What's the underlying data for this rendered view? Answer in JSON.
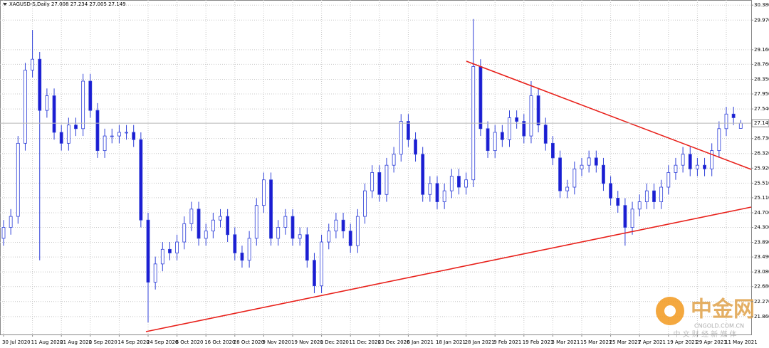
{
  "chart_data": {
    "type": "candlestick",
    "title": "XAGUSD-S,Daily  27.008 27.234 27.005 27.149",
    "categories": [
      "30 Jul 2020",
      null,
      null,
      null,
      "11 Aug 2020",
      null,
      null,
      null,
      "21 Aug 2020",
      null,
      null,
      null,
      "2 Sep 2020",
      null,
      null,
      null,
      "14 Sep 2020",
      null,
      null,
      null,
      "24 Sep 2020",
      null,
      null,
      null,
      "6 Oct 2020",
      null,
      null,
      null,
      "16 Oct 2020",
      null,
      null,
      null,
      "28 Oct 2020",
      null,
      null,
      null,
      "9 Nov 2020",
      null,
      null,
      null,
      "19 Nov 2020",
      null,
      null,
      null,
      "1 Dec 2020",
      null,
      null,
      null,
      "11 Dec 2020",
      null,
      null,
      null,
      "23 Dec 2020",
      null,
      null,
      null,
      "6 Jan 2021",
      null,
      null,
      null,
      "18 Jan 2021",
      null,
      null,
      null,
      "28 Jan 2021",
      null,
      null,
      null,
      "9 Feb 2021",
      null,
      null,
      null,
      "19 Feb 2021",
      null,
      null,
      null,
      "3 Mar 2021",
      null,
      null,
      null,
      "15 Mar 2021",
      null,
      null,
      null,
      "25 Mar 2021",
      null,
      null,
      null,
      "7 Apr 2021",
      null,
      null,
      null,
      "19 Apr 2021",
      null,
      null,
      null,
      "29 Apr 2021",
      null,
      null,
      null,
      "11 May 2021",
      null,
      null
    ],
    "open": [
      24.0,
      24.3,
      24.6,
      26.6,
      28.6,
      28.9,
      27.5,
      27.9,
      26.9,
      26.6,
      27.1,
      27.0,
      28.3,
      27.5,
      26.4,
      26.8,
      26.8,
      26.9,
      26.9,
      26.7,
      24.5,
      22.8,
      23.3,
      23.7,
      23.6,
      23.9,
      24.4,
      24.8,
      24.0,
      24.2,
      24.5,
      24.6,
      24.1,
      23.6,
      23.4,
      24.0,
      24.9,
      25.6,
      24.0,
      24.3,
      24.6,
      24.0,
      24.1,
      23.4,
      22.7,
      23.9,
      24.2,
      24.5,
      24.2,
      23.8,
      24.6,
      25.3,
      25.8,
      25.2,
      26.0,
      26.3,
      27.2,
      26.7,
      26.3,
      25.2,
      25.5,
      25.0,
      25.3,
      25.7,
      25.4,
      25.6,
      28.7,
      27.0,
      26.4,
      26.9,
      26.7,
      27.3,
      27.2,
      26.8,
      27.9,
      27.1,
      26.6,
      26.2,
      25.3,
      25.4,
      25.9,
      26.0,
      26.2,
      26.0,
      25.5,
      25.1,
      24.9,
      24.3,
      24.8,
      25.0,
      25.3,
      25.0,
      25.4,
      25.8,
      26.0,
      26.3,
      25.9,
      26.0,
      25.9,
      26.4,
      27.0,
      27.4,
      27.008
    ],
    "high": [
      24.5,
      24.8,
      26.8,
      28.8,
      29.7,
      29.1,
      28.1,
      28.1,
      27.1,
      27.3,
      27.3,
      28.5,
      28.5,
      27.7,
      27.0,
      27.0,
      27.1,
      27.1,
      27.1,
      26.9,
      24.7,
      23.5,
      23.9,
      23.9,
      24.1,
      24.6,
      25.0,
      25.0,
      24.4,
      24.7,
      24.8,
      24.8,
      24.3,
      23.8,
      24.2,
      25.1,
      25.8,
      25.8,
      24.5,
      24.8,
      24.8,
      24.3,
      24.3,
      23.6,
      24.1,
      24.4,
      24.7,
      24.7,
      24.4,
      24.8,
      25.5,
      26.0,
      26.0,
      26.2,
      26.5,
      27.4,
      27.4,
      26.9,
      26.5,
      25.7,
      25.7,
      25.5,
      25.9,
      25.9,
      25.8,
      30.0,
      28.9,
      27.2,
      27.1,
      27.1,
      27.5,
      27.5,
      27.4,
      28.3,
      28.1,
      27.3,
      26.8,
      26.4,
      25.6,
      26.1,
      26.2,
      26.4,
      26.4,
      26.2,
      25.7,
      25.3,
      25.1,
      25.0,
      25.2,
      25.5,
      25.5,
      25.6,
      26.0,
      26.2,
      26.5,
      26.5,
      26.2,
      26.2,
      26.6,
      27.2,
      27.6,
      27.6,
      27.234
    ],
    "low": [
      23.8,
      24.1,
      24.4,
      26.4,
      28.4,
      23.4,
      27.3,
      26.7,
      26.4,
      26.4,
      26.8,
      26.8,
      27.3,
      26.2,
      26.2,
      26.6,
      26.6,
      26.7,
      26.5,
      24.3,
      21.7,
      22.6,
      23.1,
      23.4,
      23.4,
      23.7,
      24.2,
      23.8,
      23.8,
      24.0,
      24.3,
      23.9,
      23.4,
      23.2,
      23.2,
      23.8,
      24.7,
      23.8,
      23.8,
      24.1,
      23.8,
      23.8,
      23.2,
      22.5,
      22.5,
      23.7,
      24.0,
      24.0,
      23.6,
      23.6,
      24.4,
      25.1,
      25.0,
      25.0,
      25.8,
      26.1,
      26.5,
      26.1,
      25.0,
      25.0,
      24.8,
      24.8,
      25.1,
      25.2,
      25.2,
      25.4,
      26.8,
      26.2,
      26.2,
      26.5,
      26.5,
      27.0,
      26.6,
      26.6,
      26.9,
      26.4,
      26.0,
      25.1,
      25.1,
      25.2,
      25.7,
      25.8,
      25.8,
      25.3,
      24.9,
      24.7,
      23.8,
      24.1,
      24.6,
      24.8,
      24.8,
      24.8,
      25.2,
      25.6,
      25.8,
      25.7,
      25.7,
      25.7,
      25.7,
      26.2,
      26.8,
      27.1,
      27.005
    ],
    "close": [
      24.3,
      24.6,
      26.6,
      28.6,
      28.9,
      27.5,
      27.9,
      26.9,
      26.6,
      27.1,
      27.0,
      28.3,
      27.5,
      26.4,
      26.8,
      26.8,
      26.9,
      26.9,
      26.7,
      24.5,
      22.8,
      23.3,
      23.7,
      23.6,
      23.9,
      24.4,
      24.8,
      24.0,
      24.2,
      24.5,
      24.6,
      24.1,
      23.6,
      23.4,
      24.0,
      24.9,
      25.6,
      24.0,
      24.3,
      24.6,
      24.0,
      24.1,
      23.4,
      22.7,
      23.9,
      24.2,
      24.5,
      24.2,
      23.8,
      24.6,
      25.3,
      25.8,
      25.2,
      26.0,
      26.3,
      27.2,
      26.7,
      26.3,
      25.2,
      25.5,
      25.0,
      25.3,
      25.7,
      25.4,
      25.6,
      28.7,
      27.0,
      26.4,
      26.9,
      26.7,
      27.3,
      27.2,
      26.8,
      27.9,
      27.1,
      26.6,
      26.2,
      25.3,
      25.4,
      25.9,
      26.0,
      26.2,
      26.0,
      25.5,
      25.1,
      24.9,
      24.3,
      24.8,
      25.0,
      25.3,
      25.0,
      25.4,
      25.8,
      26.0,
      26.3,
      25.9,
      26.0,
      25.9,
      26.4,
      27.0,
      27.4,
      27.3,
      27.149
    ],
    "up_color": "#ffffff",
    "down_color": "#1c1cd2",
    "outline_color": "#2e3fd8",
    "ylim": [
      21.37,
      30.52
    ],
    "yticks": [
      {
        "value": 30.38,
        "label": "30.380"
      },
      {
        "value": 29.97,
        "label": "29.970"
      },
      {
        "value": 29.16,
        "label": "29.160"
      },
      {
        "value": 28.76,
        "label": "28.760"
      },
      {
        "value": 28.35,
        "label": "28.350"
      },
      {
        "value": 27.95,
        "label": "27.950"
      },
      {
        "value": 27.54,
        "label": "27.540"
      },
      {
        "value": 26.73,
        "label": "26.730"
      },
      {
        "value": 26.32,
        "label": "26.320"
      },
      {
        "value": 25.92,
        "label": "25.920"
      },
      {
        "value": 25.51,
        "label": "25.510"
      },
      {
        "value": 25.11,
        "label": "25.110"
      },
      {
        "value": 24.7,
        "label": "24.700"
      },
      {
        "value": 24.3,
        "label": "24.300"
      },
      {
        "value": 23.89,
        "label": "23.890"
      },
      {
        "value": 23.49,
        "label": "23.490"
      },
      {
        "value": 23.08,
        "label": "23.080"
      },
      {
        "value": 22.68,
        "label": "22.680"
      },
      {
        "value": 22.27,
        "label": "22.270"
      },
      {
        "value": 21.86,
        "label": "21.860"
      }
    ],
    "current_price": {
      "value": 27.149,
      "label": "27.149"
    },
    "grid": true
  },
  "watermark": {
    "brand": "中金网",
    "site": "CNGOLD.COM.CN",
    "slogan": "中 文 财 经 新 媒 体"
  }
}
